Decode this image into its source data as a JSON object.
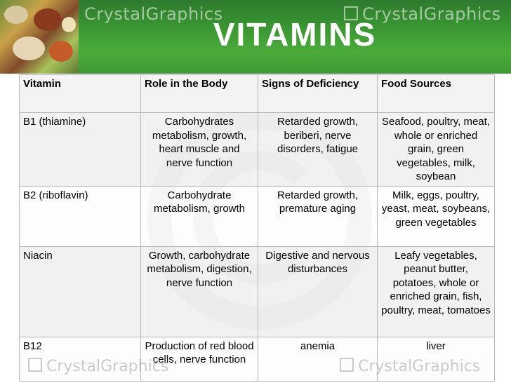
{
  "slide": {
    "title": "VITAMINS",
    "watermark": "CrystalGraphics",
    "header_color": "#3e9b34"
  },
  "table": {
    "headers": [
      "Vitamin",
      "Role in the Body",
      "Signs of Deficiency",
      "Food Sources"
    ],
    "rows": [
      {
        "vitamin": "B1 (thiamine)",
        "role": "Carbohydrates metabolism, growth, heart muscle and nerve function",
        "deficiency": "Retarded growth, beriberi, nerve disorders, fatigue",
        "sources": "Seafood, poultry, meat, whole or enriched grain, green vegetables, milk, soybean"
      },
      {
        "vitamin": "B2 (riboflavin)",
        "role": "Carbohydrate metabolism, growth",
        "deficiency": "Retarded growth, premature aging",
        "sources": "Milk, eggs, poultry, yeast, meat, soybeans, green vegetables"
      },
      {
        "vitamin": "Niacin",
        "role": "Growth, carbohydrate metabolism, digestion, nerve function",
        "deficiency": "Digestive and nervous disturbances",
        "sources": "Leafy vegetables, peanut butter, potatoes, whole or enriched grain, fish, poultry, meat, tomatoes"
      },
      {
        "vitamin": "B12",
        "role": "Production of red blood cells, nerve function",
        "deficiency": "anemia",
        "sources": "liver"
      }
    ]
  }
}
